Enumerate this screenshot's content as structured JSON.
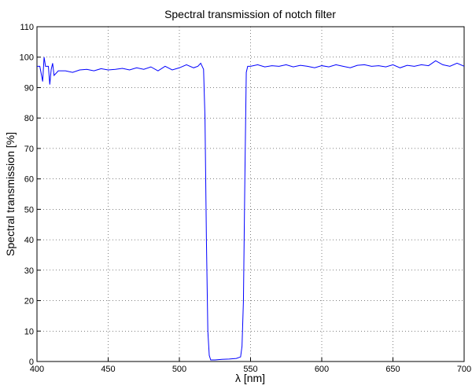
{
  "chart_data": {
    "type": "line",
    "title": "Spectral transmission of notch filter",
    "x_label": "λ [nm]",
    "y_label": "Spectral transmission [%]",
    "xlim": [
      400,
      700
    ],
    "xticks": [
      400,
      450,
      500,
      550,
      600,
      650,
      700
    ],
    "ylim": [
      0,
      110
    ],
    "yticks": [
      0,
      10,
      20,
      30,
      40,
      50,
      60,
      70,
      80,
      90,
      100,
      110
    ],
    "grid": true,
    "series": [
      {
        "color": "#0000ff",
        "x": [
          400,
          402,
          404,
          405,
          406,
          408,
          409,
          410,
          411,
          412,
          415,
          420,
          425,
          430,
          435,
          440,
          445,
          450,
          455,
          460,
          465,
          470,
          475,
          480,
          485,
          490,
          495,
          500,
          505,
          510,
          513,
          515,
          517,
          518,
          519,
          520,
          521,
          522,
          525,
          530,
          535,
          540,
          543,
          544,
          545,
          546,
          547,
          548,
          550,
          555,
          560,
          565,
          570,
          575,
          580,
          585,
          590,
          595,
          600,
          605,
          610,
          615,
          620,
          625,
          630,
          635,
          640,
          645,
          650,
          655,
          660,
          665,
          670,
          675,
          680,
          685,
          690,
          695,
          700
        ],
        "values": [
          97,
          97,
          92,
          100,
          97,
          97,
          91,
          96,
          98,
          94,
          95.5,
          95.5,
          95,
          95.8,
          96,
          95.5,
          96.2,
          95.8,
          96,
          96.3,
          95.8,
          96.5,
          96,
          96.8,
          95.5,
          97,
          95.8,
          96.5,
          97.5,
          96.5,
          97,
          98,
          96,
          80,
          40,
          10,
          2,
          0.5,
          0.5,
          0.7,
          0.8,
          1,
          1.5,
          5,
          20,
          60,
          95,
          97,
          97,
          97.5,
          96.8,
          97.2,
          97,
          97.5,
          96.8,
          97.3,
          97,
          96.5,
          97.2,
          96.8,
          97.5,
          97,
          96.5,
          97.3,
          97.5,
          97,
          97.2,
          96.8,
          97.5,
          96.5,
          97.3,
          97,
          97.5,
          97.2,
          98.8,
          97.5,
          97,
          98,
          97
        ]
      }
    ]
  }
}
